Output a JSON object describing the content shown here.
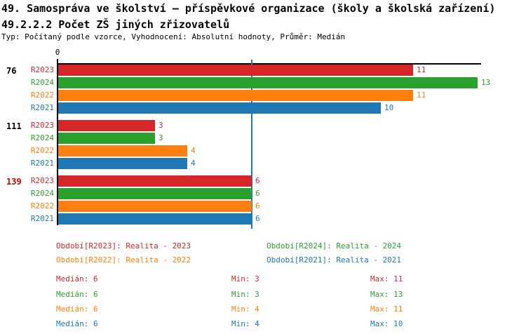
{
  "header": {
    "title_line1": "49. Samospráva ve školství – příspěvkové organizace (školy a školská zařízení)",
    "title_line2": "49.2.2.2 Počet ZŠ jiných zřizovatelů",
    "subtitle": "Typ: Počítaný podle vzorce, Vyhodnocení: Absolutní hodnoty, Průměr: Medián"
  },
  "colors": {
    "R2023": "#d62728",
    "R2024": "#2ca02c",
    "R2022": "#ff7f0e",
    "R2021": "#1f77b4",
    "median_line": "#1f77b4",
    "highlight_label": "#d40000",
    "normal_label": "#000000",
    "axis": "#000000"
  },
  "chart_data": {
    "type": "bar",
    "orientation": "horizontal",
    "title": "49.2.2.2 Počet ZŠ jiných zřizovatelů",
    "x_axis": {
      "range": [
        0,
        13.1
      ],
      "tick_labels": [
        "0"
      ],
      "grid": false
    },
    "median_reference_line": 6,
    "series_order": [
      "R2023",
      "R2024",
      "R2022",
      "R2021"
    ],
    "groups": [
      {
        "label": "76",
        "highlight": false,
        "values": {
          "R2023": 11,
          "R2024": 13,
          "R2022": 11,
          "R2021": 10
        }
      },
      {
        "label": "111",
        "highlight": false,
        "values": {
          "R2023": 3,
          "R2024": 3,
          "R2022": 4,
          "R2021": 4
        }
      },
      {
        "label": "139",
        "highlight": true,
        "values": {
          "R2023": 6,
          "R2024": 6,
          "R2022": 6,
          "R2021": 6
        }
      }
    ]
  },
  "legend": [
    {
      "series": "R2023",
      "label": "Období[R2023]: Realita - 2023"
    },
    {
      "series": "R2024",
      "label": "Období[R2024]: Realita - 2024"
    },
    {
      "series": "R2022",
      "label": "Období[R2022]: Realita - 2022"
    },
    {
      "series": "R2021",
      "label": "Období[R2021]: Realita - 2021"
    }
  ],
  "stats_rows": [
    {
      "series": "R2023",
      "median": "Medián: 6",
      "min": "Min: 3",
      "max": "Max: 11"
    },
    {
      "series": "R2024",
      "median": "Medián: 6",
      "min": "Min: 3",
      "max": "Max: 13"
    },
    {
      "series": "R2022",
      "median": "Medián: 6",
      "min": "Min: 4",
      "max": "Max: 11"
    },
    {
      "series": "R2021",
      "median": "Medián: 6",
      "min": "Min: 4",
      "max": "Max: 10"
    }
  ]
}
